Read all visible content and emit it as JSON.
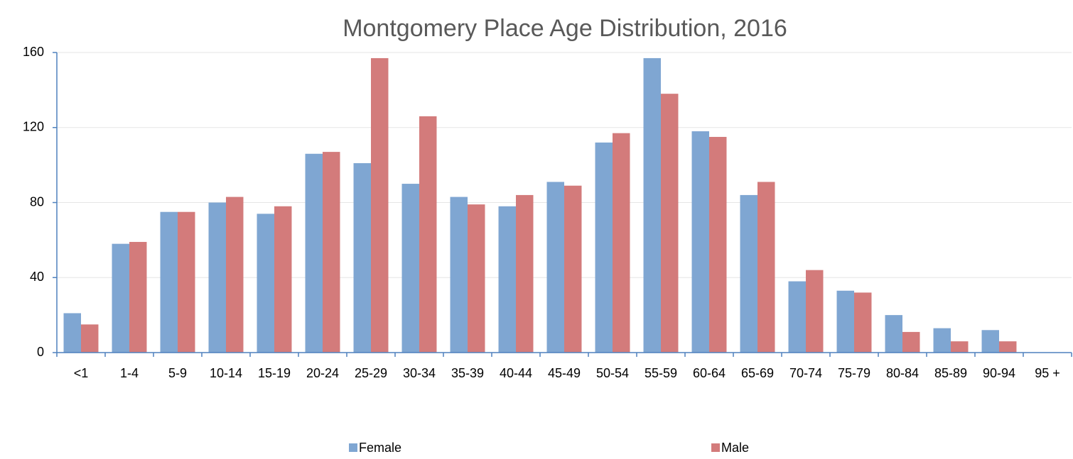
{
  "chart_data": {
    "type": "bar",
    "title": "Montgomery Place Age Distribution, 2016",
    "categories": [
      "<1",
      "1-4",
      "5-9",
      "10-14",
      "15-19",
      "20-24",
      "25-29",
      "30-34",
      "35-39",
      "40-44",
      "45-49",
      "50-54",
      "55-59",
      "60-64",
      "65-69",
      "70-74",
      "75-79",
      "80-84",
      "85-89",
      "90-94",
      "95 +"
    ],
    "series": [
      {
        "name": "Female",
        "color": "#7fa6d2",
        "values": [
          21,
          58,
          75,
          80,
          74,
          106,
          101,
          90,
          83,
          78,
          91,
          112,
          157,
          118,
          84,
          38,
          33,
          20,
          13,
          12,
          0
        ]
      },
      {
        "name": "Male",
        "color": "#d37b7b",
        "values": [
          15,
          59,
          75,
          83,
          78,
          107,
          157,
          126,
          79,
          84,
          89,
          117,
          138,
          115,
          91,
          44,
          32,
          11,
          6,
          6,
          0
        ]
      }
    ],
    "ylim": [
      0,
      160
    ],
    "yticks": [
      0,
      40,
      80,
      120,
      160
    ],
    "grid": true,
    "legend": "bottom"
  }
}
